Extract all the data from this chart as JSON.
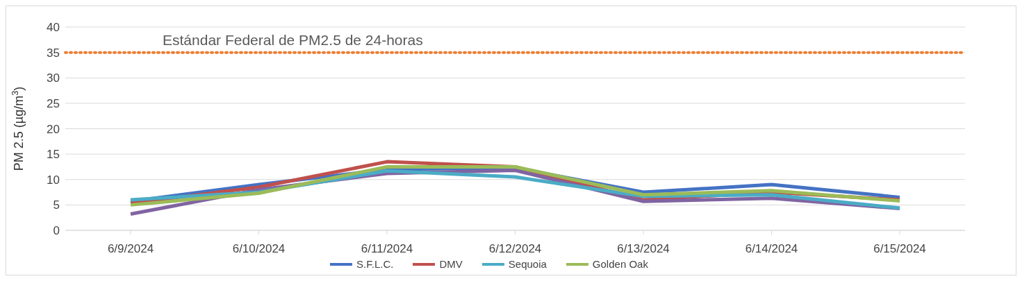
{
  "chart_data": {
    "type": "line",
    "ylabel": "PM 2.5 (µg/m$^{3}$)",
    "categories": [
      "6/9/2024",
      "6/10/2024",
      "6/11/2024",
      "6/12/2024",
      "6/13/2024",
      "6/14/2024",
      "6/15/2024"
    ],
    "series": [
      {
        "name": "S.F.L.C.",
        "color": "#4472c4",
        "values": [
          5.7,
          9,
          12,
          12.3,
          7.5,
          9,
          6.5
        ]
      },
      {
        "name": "DMV",
        "color": "#c0504d",
        "values": [
          5.3,
          8.5,
          13.5,
          12.5,
          6,
          7.5,
          6
        ]
      },
      {
        "color": "#8064a2",
        "values": [
          3.2,
          8,
          11.2,
          11.8,
          5.7,
          6.3,
          4.3
        ]
      },
      {
        "name": "Sequoia",
        "color": "#4bacc6",
        "values": [
          6,
          7.5,
          11.7,
          10.5,
          6.7,
          7,
          4.4
        ]
      },
      {
        "name": "Golden Oak",
        "color": "#9bbb59",
        "values": [
          5,
          7.3,
          12.5,
          12.5,
          7,
          7.8,
          5.8
        ]
      }
    ],
    "ylim": [
      0,
      40
    ],
    "yticks": [
      0,
      5,
      10,
      15,
      20,
      25,
      30,
      35,
      40
    ],
    "grid": "y",
    "legend": "bottom",
    "marker": "none",
    "line_style": "solid",
    "ref_lines": [
      {
        "axis": "y",
        "value": 35,
        "label": "Estándar Federal de PM2.5 de 24-horas",
        "color": "#ed7d31",
        "line_style": "dotted"
      }
    ]
  }
}
